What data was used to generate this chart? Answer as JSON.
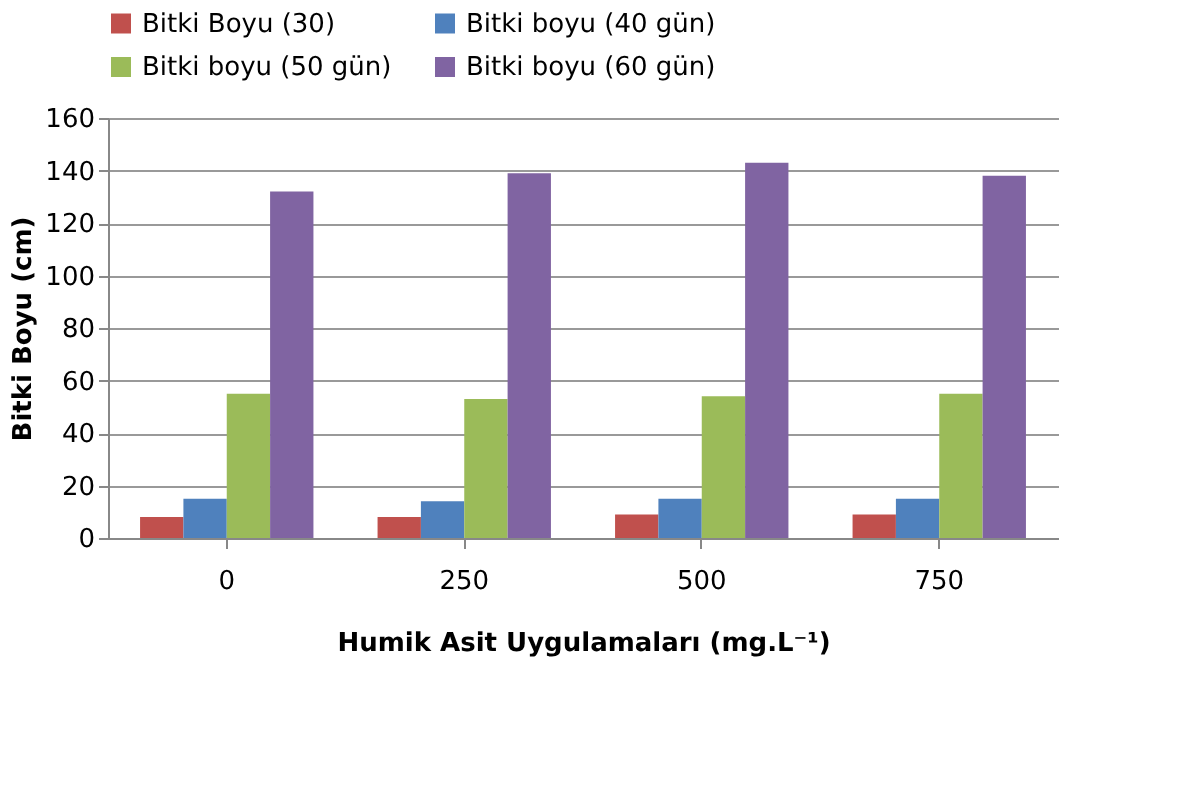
{
  "chart_data": {
    "type": "bar",
    "xlabel": "Humik Asit Uygulamaları (mg.L⁻¹)",
    "ylabel": "Bitki Boyu (cm)",
    "categories": [
      "0",
      "250",
      "500",
      "750"
    ],
    "series": [
      {
        "name": "Bitki Boyu (30)",
        "color": "#c0504d",
        "values": [
          8,
          8,
          9,
          9
        ]
      },
      {
        "name": "Bitki boyu (40 gün)",
        "color": "#4f81bd",
        "values": [
          15,
          14,
          15,
          15
        ]
      },
      {
        "name": "Bitki boyu (50 gün)",
        "color": "#9bbb59",
        "values": [
          55,
          53,
          54,
          55
        ]
      },
      {
        "name": "Bitki boyu (60 gün)",
        "color": "#8064a2",
        "values": [
          132,
          139,
          143,
          138
        ]
      }
    ],
    "ylim": [
      0,
      160
    ],
    "yticks": [
      0,
      20,
      40,
      60,
      80,
      100,
      120,
      140,
      160
    ],
    "grid": "y",
    "legend": "top"
  }
}
